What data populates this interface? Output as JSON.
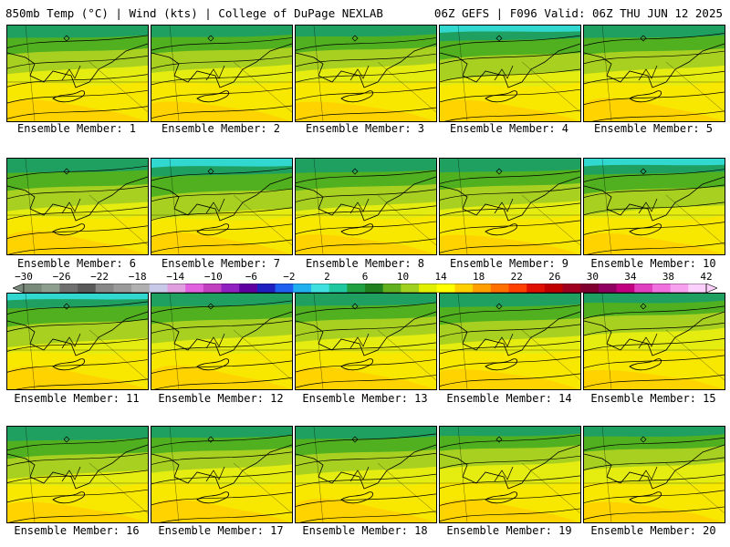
{
  "header": {
    "left": "850mb Temp (°C) | Wind (kts) | College of DuPage NEXLAB",
    "right": "06Z GEFS | F096 Valid: 06Z THU JUN 12 2025"
  },
  "panels": [
    {
      "label": "Ensemble Member: 1"
    },
    {
      "label": "Ensemble Member: 2"
    },
    {
      "label": "Ensemble Member: 3"
    },
    {
      "label": "Ensemble Member: 4"
    },
    {
      "label": "Ensemble Member: 5"
    },
    {
      "label": "Ensemble Member: 6"
    },
    {
      "label": "Ensemble Member: 7"
    },
    {
      "label": "Ensemble Member: 8"
    },
    {
      "label": "Ensemble Member: 9"
    },
    {
      "label": "Ensemble Member: 10"
    },
    {
      "label": "Ensemble Member: 11"
    },
    {
      "label": "Ensemble Member: 12"
    },
    {
      "label": "Ensemble Member: 13"
    },
    {
      "label": "Ensemble Member: 14"
    },
    {
      "label": "Ensemble Member: 15"
    },
    {
      "label": "Ensemble Member: 16"
    },
    {
      "label": "Ensemble Member: 17"
    },
    {
      "label": "Ensemble Member: 18"
    },
    {
      "label": "Ensemble Member: 19"
    },
    {
      "label": "Ensemble Member: 20"
    }
  ],
  "colorbar": {
    "ticks": [
      "−30",
      "−26",
      "−22",
      "−18",
      "−14",
      "−10",
      "−6",
      "−2",
      "2",
      "6",
      "10",
      "14",
      "18",
      "22",
      "26",
      "30",
      "34",
      "38",
      "42"
    ],
    "colors": [
      "#7a8a7a",
      "#8e9e8e",
      "#707070",
      "#5a5a5a",
      "#888888",
      "#9a9a9a",
      "#b0b0b0",
      "#c8c8e8",
      "#e0a0e0",
      "#e060e0",
      "#c040c0",
      "#9020c0",
      "#6000a0",
      "#2020c0",
      "#2060f0",
      "#20b0f0",
      "#40e0e0",
      "#20c8a0",
      "#20a040",
      "#208020",
      "#60b020",
      "#a0d020",
      "#e0f000",
      "#ffff00",
      "#ffd000",
      "#ffa000",
      "#ff7000",
      "#ff4000",
      "#e01000",
      "#c00000",
      "#a00020",
      "#800030",
      "#900060",
      "#c00080",
      "#e040c0",
      "#f070e0",
      "#f8a0f0",
      "#fcd0fc"
    ]
  }
}
